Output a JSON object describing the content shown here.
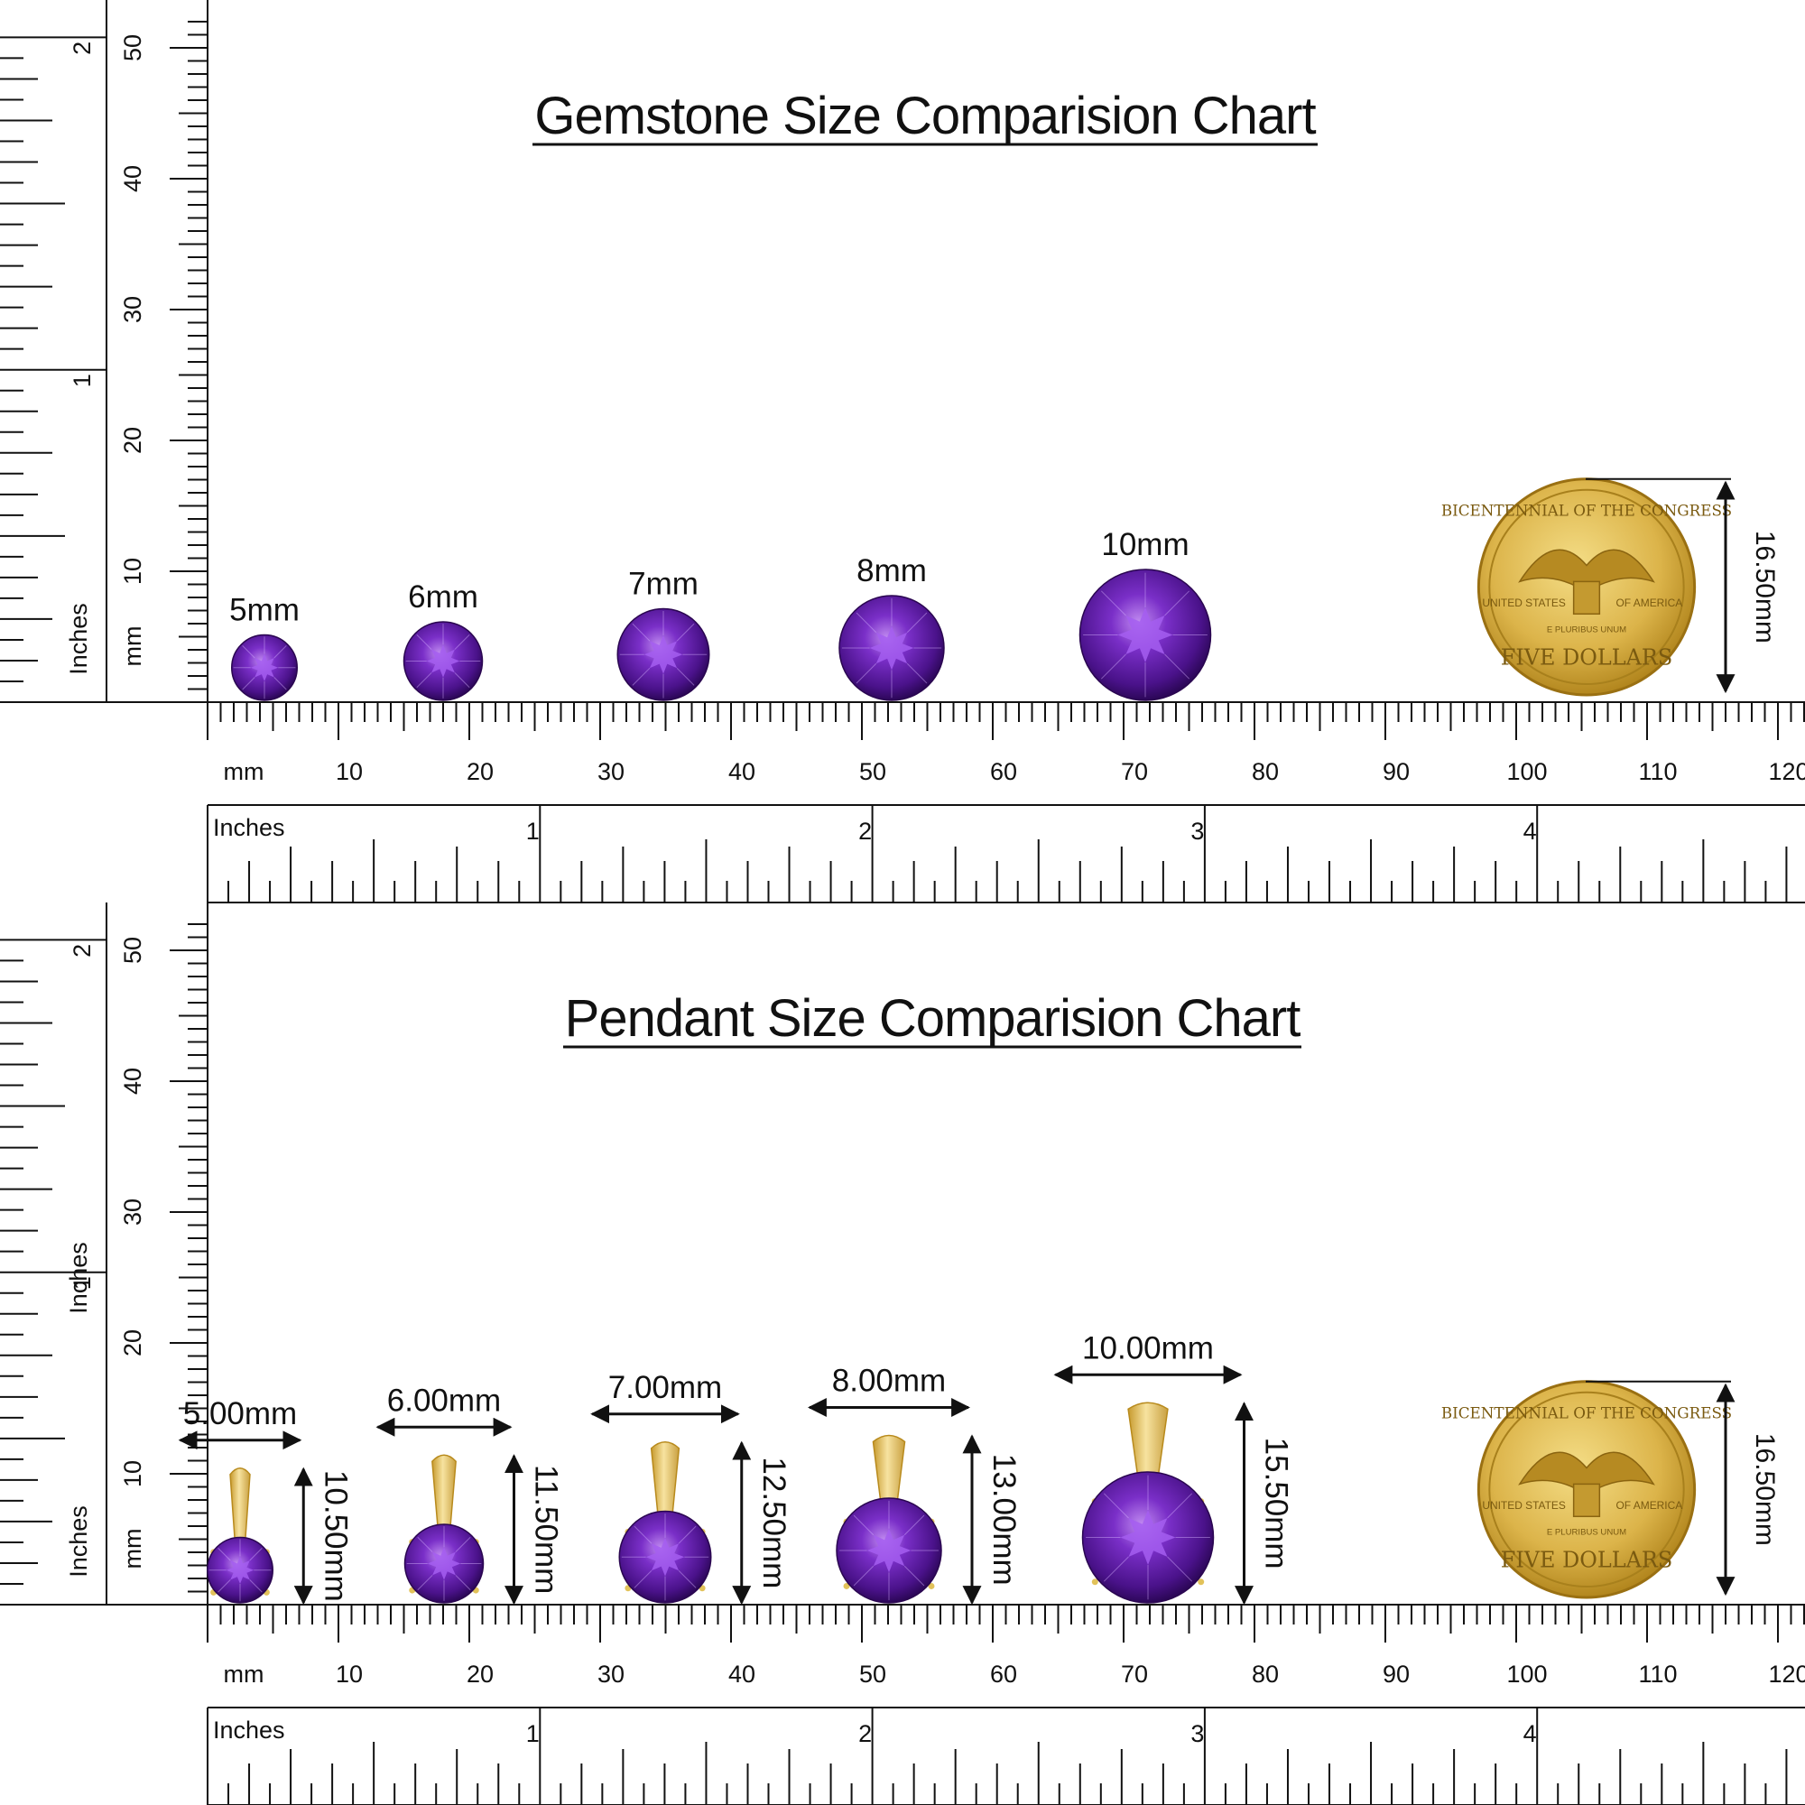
{
  "colors": {
    "ink": "#111111",
    "gem_dark": "#3a0a6e",
    "gem_mid": "#6a1fb3",
    "gem_light": "#b07ae8",
    "gold_dark": "#b88a1c",
    "gold_mid": "#dcb44a",
    "gold_light": "#f4dd86"
  },
  "gemstone_chart": {
    "title": "Gemstone Size Comparision Chart",
    "ruler_h_mm_label": "mm",
    "ruler_h_inch_label": "Inches",
    "ruler_v_mm_label": "mm",
    "ruler_v_inch_label": "Inches",
    "mm_ticks": [
      "10",
      "20",
      "30",
      "40",
      "50",
      "60",
      "70",
      "80",
      "90",
      "100",
      "110",
      "120"
    ],
    "inch_ticks": [
      "1",
      "2",
      "3",
      "4"
    ],
    "v_mm_ticks": [
      "10",
      "20",
      "30",
      "40",
      "50"
    ],
    "v_inch_ticks": [
      "1",
      "2"
    ],
    "stones": [
      {
        "label": "5mm",
        "size_mm": 5
      },
      {
        "label": "6mm",
        "size_mm": 6
      },
      {
        "label": "7mm",
        "size_mm": 7
      },
      {
        "label": "8mm",
        "size_mm": 8
      },
      {
        "label": "10mm",
        "size_mm": 10
      }
    ],
    "coin": {
      "dimension": "16.50mm",
      "top_text": "BICENTENNIAL OF THE CONGRESS",
      "bottom_text": "FIVE DOLLARS",
      "left_text": "UNITED STATES",
      "right_text": "OF AMERICA",
      "motto": "E PLURIBUS UNUM"
    }
  },
  "pendant_chart": {
    "title": "Pendant Size Comparision Chart",
    "ruler_h_mm_label": "mm",
    "ruler_h_inch_label": "Inches",
    "ruler_v_mm_label": "mm",
    "ruler_v_inch_label": "Inches",
    "ruler_v_inch_label_2": "Inches",
    "mm_ticks": [
      "10",
      "20",
      "30",
      "40",
      "50",
      "60",
      "70",
      "80",
      "90",
      "100",
      "110",
      "120"
    ],
    "inch_ticks": [
      "1",
      "2",
      "3",
      "4"
    ],
    "v_mm_ticks": [
      "10",
      "20",
      "30",
      "40",
      "50"
    ],
    "v_inch_ticks": [
      "1",
      "2"
    ],
    "pendants": [
      {
        "width_label": "5.00mm",
        "height_label": "10.50mm",
        "size_mm": 5,
        "height_mm": 10.5
      },
      {
        "width_label": "6.00mm",
        "height_label": "11.50mm",
        "size_mm": 6,
        "height_mm": 11.5
      },
      {
        "width_label": "7.00mm",
        "height_label": "12.50mm",
        "size_mm": 7,
        "height_mm": 12.5
      },
      {
        "width_label": "8.00mm",
        "height_label": "13.00mm",
        "size_mm": 8,
        "height_mm": 13.0
      },
      {
        "width_label": "10.00mm",
        "height_label": "15.50mm",
        "size_mm": 10,
        "height_mm": 15.5
      }
    ],
    "coin": {
      "dimension": "16.50mm",
      "top_text": "BICENTENNIAL OF THE CONGRESS",
      "bottom_text": "FIVE DOLLARS",
      "left_text": "UNITED STATES",
      "right_text": "OF AMERICA",
      "motto": "E PLURIBUS UNUM"
    }
  }
}
